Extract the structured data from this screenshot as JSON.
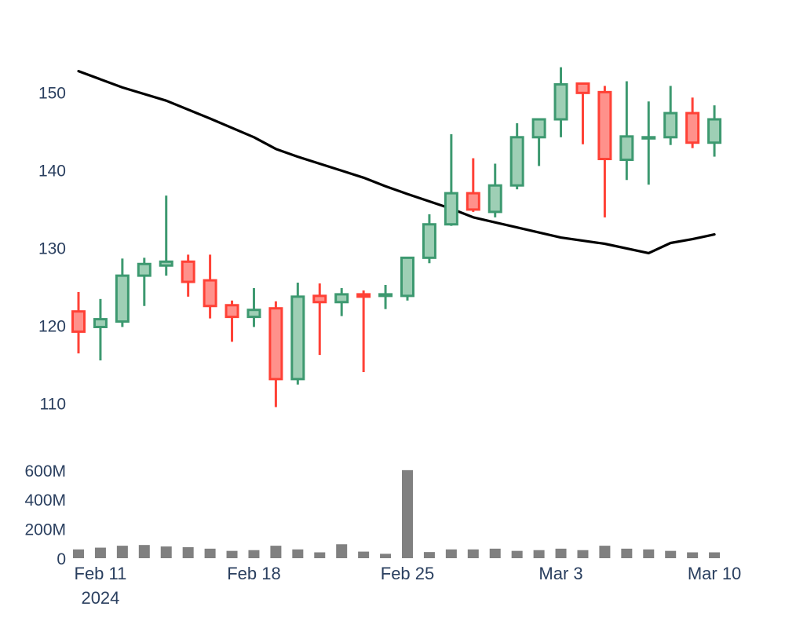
{
  "chart_data": {
    "type": "candlestick",
    "title": "",
    "colors": {
      "increasing": "#3d9970",
      "increasing_fill": "#9ecfb5",
      "decreasing": "#ff4136",
      "decreasing_fill": "#ff918b",
      "moving_average": "#000000",
      "volume": "#808080",
      "axis_text": "#2a3f5f"
    },
    "price_axis": {
      "ylim": [
        104,
        157
      ],
      "ticks": [
        110,
        120,
        130,
        140,
        150
      ]
    },
    "volume_axis": {
      "ylim": [
        0,
        610000000
      ],
      "ticks": [
        0,
        200000000,
        400000000,
        600000000
      ],
      "tick_labels": [
        "0",
        "200M",
        "400M",
        "600M"
      ]
    },
    "x_axis": {
      "range": [
        "2024-02-10",
        "2024-03-11"
      ],
      "ticks": [
        {
          "date": "2024-02-11",
          "label": "Feb 11",
          "sublabel": "2024"
        },
        {
          "date": "2024-02-18",
          "label": "Feb 18",
          "sublabel": ""
        },
        {
          "date": "2024-02-25",
          "label": "Feb 25",
          "sublabel": ""
        },
        {
          "date": "2024-03-03",
          "label": "Mar 3",
          "sublabel": ""
        },
        {
          "date": "2024-03-10",
          "label": "Mar 10",
          "sublabel": ""
        }
      ]
    },
    "candles": [
      {
        "date": "2024-02-10",
        "open": 121.8,
        "high": 124.3,
        "low": 116.4,
        "close": 119.2
      },
      {
        "date": "2024-02-11",
        "open": 119.8,
        "high": 123.4,
        "low": 115.5,
        "close": 120.8
      },
      {
        "date": "2024-02-12",
        "open": 120.5,
        "high": 128.6,
        "low": 119.8,
        "close": 126.4
      },
      {
        "date": "2024-02-13",
        "open": 126.4,
        "high": 128.7,
        "low": 122.5,
        "close": 127.9
      },
      {
        "date": "2024-02-14",
        "open": 127.7,
        "high": 136.7,
        "low": 126.4,
        "close": 128.2
      },
      {
        "date": "2024-02-15",
        "open": 128.2,
        "high": 129.1,
        "low": 123.7,
        "close": 125.6
      },
      {
        "date": "2024-02-16",
        "open": 125.8,
        "high": 129.1,
        "low": 120.9,
        "close": 122.5
      },
      {
        "date": "2024-02-17",
        "open": 122.6,
        "high": 123.2,
        "low": 117.9,
        "close": 121.1
      },
      {
        "date": "2024-02-18",
        "open": 121.1,
        "high": 124.8,
        "low": 119.8,
        "close": 122.0
      },
      {
        "date": "2024-02-19",
        "open": 122.2,
        "high": 123.1,
        "low": 109.5,
        "close": 113.1
      },
      {
        "date": "2024-02-20",
        "open": 113.1,
        "high": 125.5,
        "low": 112.4,
        "close": 123.7
      },
      {
        "date": "2024-02-21",
        "open": 123.8,
        "high": 125.4,
        "low": 116.2,
        "close": 123.0
      },
      {
        "date": "2024-02-22",
        "open": 123.0,
        "high": 124.8,
        "low": 121.2,
        "close": 124.0
      },
      {
        "date": "2024-02-23",
        "open": 124.0,
        "high": 124.5,
        "low": 114.0,
        "close": 123.7
      },
      {
        "date": "2024-02-24",
        "open": 123.8,
        "high": 125.2,
        "low": 122.1,
        "close": 124.0
      },
      {
        "date": "2024-02-25",
        "open": 123.8,
        "high": 128.8,
        "low": 123.2,
        "close": 128.7
      },
      {
        "date": "2024-02-26",
        "open": 128.7,
        "high": 134.3,
        "low": 128.0,
        "close": 133.0
      },
      {
        "date": "2024-02-27",
        "open": 133.0,
        "high": 144.6,
        "low": 132.8,
        "close": 137.0
      },
      {
        "date": "2024-02-28",
        "open": 137.0,
        "high": 141.5,
        "low": 134.6,
        "close": 134.9
      },
      {
        "date": "2024-02-29",
        "open": 134.6,
        "high": 140.8,
        "low": 133.9,
        "close": 138.0
      },
      {
        "date": "2024-03-01",
        "open": 138.0,
        "high": 146.0,
        "low": 137.5,
        "close": 144.2
      },
      {
        "date": "2024-03-02",
        "open": 144.2,
        "high": 146.5,
        "low": 140.5,
        "close": 146.5
      },
      {
        "date": "2024-03-03",
        "open": 146.5,
        "high": 153.2,
        "low": 144.2,
        "close": 151.0
      },
      {
        "date": "2024-03-04",
        "open": 151.1,
        "high": 151.1,
        "low": 143.3,
        "close": 149.9
      },
      {
        "date": "2024-03-05",
        "open": 150.0,
        "high": 150.8,
        "low": 133.9,
        "close": 141.4
      },
      {
        "date": "2024-03-06",
        "open": 141.3,
        "high": 151.4,
        "low": 138.7,
        "close": 144.3
      },
      {
        "date": "2024-03-07",
        "open": 144.2,
        "high": 148.8,
        "low": 138.1,
        "close": 144.2
      },
      {
        "date": "2024-03-08",
        "open": 144.2,
        "high": 150.8,
        "low": 143.2,
        "close": 147.3
      },
      {
        "date": "2024-03-09",
        "open": 147.3,
        "high": 149.3,
        "low": 142.8,
        "close": 143.5
      },
      {
        "date": "2024-03-10",
        "open": 143.5,
        "high": 148.3,
        "low": 141.7,
        "close": 146.5
      }
    ],
    "moving_average": {
      "x": [
        "2024-02-10",
        "2024-02-12",
        "2024-02-14",
        "2024-02-16",
        "2024-02-18",
        "2024-02-19",
        "2024-02-20",
        "2024-02-22",
        "2024-02-23",
        "2024-02-24",
        "2024-02-25",
        "2024-02-27",
        "2024-02-28",
        "2024-03-01",
        "2024-03-03",
        "2024-03-05",
        "2024-03-07",
        "2024-03-08",
        "2024-03-09",
        "2024-03-10"
      ],
      "y": [
        152.7,
        150.6,
        148.9,
        146.6,
        144.2,
        142.7,
        141.7,
        139.9,
        139.0,
        137.9,
        136.9,
        135.0,
        133.9,
        132.6,
        131.3,
        130.5,
        129.3,
        130.6,
        131.1,
        131.7
      ]
    },
    "volume": [
      {
        "date": "2024-02-10",
        "value": 60000000
      },
      {
        "date": "2024-02-11",
        "value": 72000000
      },
      {
        "date": "2024-02-12",
        "value": 85000000
      },
      {
        "date": "2024-02-13",
        "value": 90000000
      },
      {
        "date": "2024-02-14",
        "value": 80000000
      },
      {
        "date": "2024-02-15",
        "value": 75000000
      },
      {
        "date": "2024-02-16",
        "value": 65000000
      },
      {
        "date": "2024-02-17",
        "value": 50000000
      },
      {
        "date": "2024-02-18",
        "value": 55000000
      },
      {
        "date": "2024-02-19",
        "value": 85000000
      },
      {
        "date": "2024-02-20",
        "value": 60000000
      },
      {
        "date": "2024-02-21",
        "value": 40000000
      },
      {
        "date": "2024-02-22",
        "value": 95000000
      },
      {
        "date": "2024-02-23",
        "value": 45000000
      },
      {
        "date": "2024-02-24",
        "value": 30000000
      },
      {
        "date": "2024-02-25",
        "value": 600000000
      },
      {
        "date": "2024-02-26",
        "value": 42000000
      },
      {
        "date": "2024-02-27",
        "value": 60000000
      },
      {
        "date": "2024-02-28",
        "value": 60000000
      },
      {
        "date": "2024-02-29",
        "value": 65000000
      },
      {
        "date": "2024-03-01",
        "value": 50000000
      },
      {
        "date": "2024-03-02",
        "value": 55000000
      },
      {
        "date": "2024-03-03",
        "value": 65000000
      },
      {
        "date": "2024-03-04",
        "value": 55000000
      },
      {
        "date": "2024-03-05",
        "value": 85000000
      },
      {
        "date": "2024-03-06",
        "value": 65000000
      },
      {
        "date": "2024-03-07",
        "value": 60000000
      },
      {
        "date": "2024-03-08",
        "value": 50000000
      },
      {
        "date": "2024-03-09",
        "value": 40000000
      },
      {
        "date": "2024-03-10",
        "value": 40000000
      }
    ]
  }
}
